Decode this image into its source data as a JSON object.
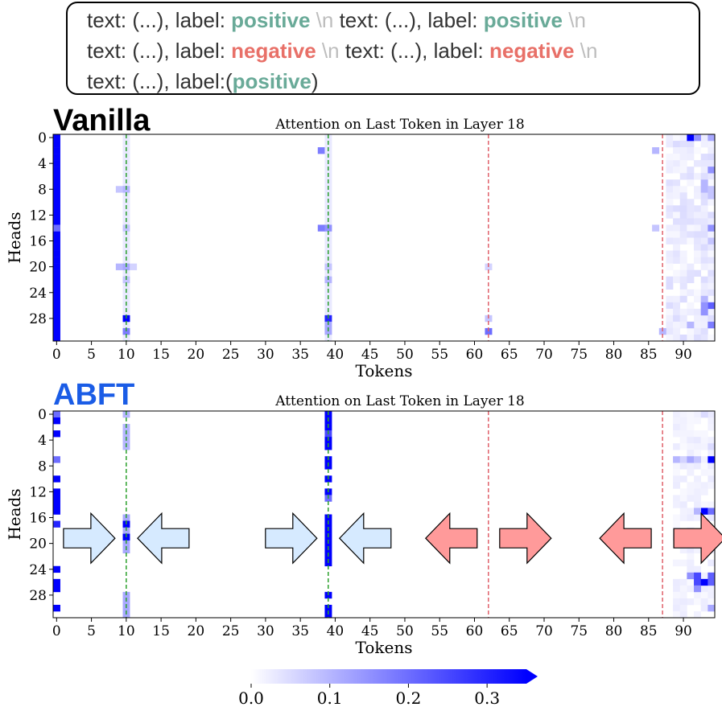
{
  "prompt": {
    "lines": [
      [
        {
          "t": "text: (...), label: ",
          "c": ""
        },
        {
          "t": "positive",
          "c": "pos"
        },
        {
          "t": " \\n",
          "c": "nl"
        },
        {
          "t": "  text: (...), label: ",
          "c": ""
        },
        {
          "t": "positive",
          "c": "pos"
        },
        {
          "t": " \\n",
          "c": "nl"
        }
      ],
      [
        {
          "t": "text: (...), label: ",
          "c": ""
        },
        {
          "t": "negative",
          "c": "neg"
        },
        {
          "t": " \\n",
          "c": "nl"
        },
        {
          "t": " text: (...), label: ",
          "c": ""
        },
        {
          "t": "negative",
          "c": "neg"
        },
        {
          "t": " \\n",
          "c": "nl"
        }
      ],
      [
        {
          "t": "text: (...), label:(",
          "c": ""
        },
        {
          "t": "positive",
          "c": "pos"
        },
        {
          "t": ")",
          "c": ""
        }
      ]
    ]
  },
  "panels": {
    "vanilla": {
      "label": "Vanilla",
      "label_color": "#000000"
    },
    "abft": {
      "label": "ABFT",
      "label_color": "#1a5ce6"
    }
  },
  "colors": {
    "positive": "#69aa98",
    "negative": "#e87068",
    "heat_max": "#0000ff",
    "arrow_blue_fill": "#d6eaff",
    "arrow_red_fill": "#ff9a9a",
    "line_green": "#2ca02c",
    "line_red": "#e0606a"
  },
  "chart_data": [
    {
      "type": "heatmap",
      "id": "vanilla",
      "title": "Attention on Last Token in Layer 18",
      "xlabel": "Tokens",
      "ylabel": "Heads",
      "n_tokens": 95,
      "n_heads": 32,
      "xticks": [
        0,
        5,
        10,
        15,
        20,
        25,
        30,
        35,
        40,
        45,
        50,
        55,
        60,
        65,
        70,
        75,
        80,
        85,
        90
      ],
      "yticks": [
        0,
        4,
        8,
        12,
        16,
        20,
        24,
        28
      ],
      "vlines": [
        {
          "x": 10,
          "color": "green"
        },
        {
          "x": 39,
          "color": "green"
        },
        {
          "x": 62,
          "color": "red"
        },
        {
          "x": 87,
          "color": "red"
        }
      ],
      "cells": [
        {
          "x": 0,
          "y0": 0,
          "y1": 31,
          "v": 0.36
        },
        {
          "x": 0,
          "y0": 14,
          "y1": 14,
          "v": 0.2
        },
        {
          "x": 10,
          "y0": 0,
          "y1": 31,
          "v": 0.03
        },
        {
          "x": 9,
          "y0": 8,
          "y1": 8,
          "v": 0.08
        },
        {
          "x": 10,
          "y0": 8,
          "y1": 8,
          "v": 0.1
        },
        {
          "x": 10,
          "y0": 14,
          "y1": 14,
          "v": 0.08
        },
        {
          "x": 9,
          "y0": 20,
          "y1": 20,
          "v": 0.1
        },
        {
          "x": 10,
          "y0": 20,
          "y1": 20,
          "v": 0.12
        },
        {
          "x": 11,
          "y0": 20,
          "y1": 20,
          "v": 0.06
        },
        {
          "x": 10,
          "y0": 22,
          "y1": 22,
          "v": 0.08
        },
        {
          "x": 10,
          "y0": 28,
          "y1": 28,
          "v": 0.35
        },
        {
          "x": 10,
          "y0": 30,
          "y1": 30,
          "v": 0.18
        },
        {
          "x": 38,
          "y0": 2,
          "y1": 2,
          "v": 0.18
        },
        {
          "x": 39,
          "y0": 0,
          "y1": 31,
          "v": 0.03
        },
        {
          "x": 38,
          "y0": 14,
          "y1": 14,
          "v": 0.18
        },
        {
          "x": 39,
          "y0": 14,
          "y1": 14,
          "v": 0.15
        },
        {
          "x": 39,
          "y0": 20,
          "y1": 20,
          "v": 0.08
        },
        {
          "x": 39,
          "y0": 22,
          "y1": 22,
          "v": 0.1
        },
        {
          "x": 39,
          "y0": 28,
          "y1": 28,
          "v": 0.3
        },
        {
          "x": 39,
          "y0": 29,
          "y1": 30,
          "v": 0.12
        },
        {
          "x": 62,
          "y0": 20,
          "y1": 20,
          "v": 0.06
        },
        {
          "x": 62,
          "y0": 28,
          "y1": 28,
          "v": 0.08
        },
        {
          "x": 62,
          "y0": 30,
          "y1": 30,
          "v": 0.2
        },
        {
          "x": 86,
          "y0": 2,
          "y1": 2,
          "v": 0.1
        },
        {
          "x": 86,
          "y0": 14,
          "y1": 14,
          "v": 0.08
        },
        {
          "x": 87,
          "y0": 30,
          "y1": 30,
          "v": 0.1
        },
        {
          "x": 91,
          "y0": 0,
          "y1": 0,
          "v": 0.38
        },
        {
          "x": 92,
          "y0": 0,
          "y1": 0,
          "v": 0.15
        },
        {
          "x": 94,
          "y0": 0,
          "y1": 0,
          "v": 0.12
        },
        {
          "x": 94,
          "y0": 5,
          "y1": 5,
          "v": 0.15
        },
        {
          "x": 93,
          "y0": 7,
          "y1": 8,
          "v": 0.1
        },
        {
          "x": 94,
          "y0": 8,
          "y1": 9,
          "v": 0.08
        },
        {
          "x": 94,
          "y0": 14,
          "y1": 14,
          "v": 0.15
        },
        {
          "x": 94,
          "y0": 16,
          "y1": 16,
          "v": 0.08
        },
        {
          "x": 93,
          "y0": 25,
          "y1": 25,
          "v": 0.1
        },
        {
          "x": 94,
          "y0": 26,
          "y1": 26,
          "v": 0.22
        },
        {
          "x": 93,
          "y0": 26,
          "y1": 27,
          "v": 0.15
        },
        {
          "x": 94,
          "y0": 29,
          "y1": 29,
          "v": 0.18
        },
        {
          "x": 91,
          "y0": 29,
          "y1": 29,
          "v": 0.1
        }
      ],
      "region_noise": {
        "x_from": 88,
        "x_to": 94,
        "v": 0.05
      }
    },
    {
      "type": "heatmap",
      "id": "abft",
      "title": "Attention on Last Token in Layer 18",
      "xlabel": "Tokens",
      "ylabel": "Heads",
      "n_tokens": 95,
      "n_heads": 32,
      "xticks": [
        0,
        5,
        10,
        15,
        20,
        25,
        30,
        35,
        40,
        45,
        50,
        55,
        60,
        65,
        70,
        75,
        80,
        85,
        90
      ],
      "yticks": [
        0,
        4,
        8,
        12,
        16,
        20,
        24,
        28
      ],
      "vlines": [
        {
          "x": 10,
          "color": "green"
        },
        {
          "x": 39,
          "color": "green"
        },
        {
          "x": 62,
          "color": "red"
        },
        {
          "x": 87,
          "color": "red"
        }
      ],
      "cells": [
        {
          "x": 0,
          "y0": 0,
          "y1": 0,
          "v": 0.2
        },
        {
          "x": 0,
          "y0": 1,
          "y1": 1,
          "v": 0.35
        },
        {
          "x": 0,
          "y0": 3,
          "y1": 3,
          "v": 0.36
        },
        {
          "x": 0,
          "y0": 7,
          "y1": 7,
          "v": 0.2
        },
        {
          "x": 0,
          "y0": 10,
          "y1": 10,
          "v": 0.36
        },
        {
          "x": 0,
          "y0": 12,
          "y1": 15,
          "v": 0.36
        },
        {
          "x": 0,
          "y0": 17,
          "y1": 17,
          "v": 0.3
        },
        {
          "x": 0,
          "y0": 24,
          "y1": 24,
          "v": 0.36
        },
        {
          "x": 0,
          "y0": 26,
          "y1": 27,
          "v": 0.36
        },
        {
          "x": 0,
          "y0": 30,
          "y1": 30,
          "v": 0.36
        },
        {
          "x": 10,
          "y0": 0,
          "y1": 0,
          "v": 0.1
        },
        {
          "x": 10,
          "y0": 2,
          "y1": 5,
          "v": 0.1
        },
        {
          "x": 10,
          "y0": 16,
          "y1": 21,
          "v": 0.12
        },
        {
          "x": 10,
          "y0": 17,
          "y1": 17,
          "v": 0.35
        },
        {
          "x": 10,
          "y0": 19,
          "y1": 19,
          "v": 0.36
        },
        {
          "x": 10,
          "y0": 28,
          "y1": 31,
          "v": 0.12
        },
        {
          "x": 39,
          "y0": 0,
          "y1": 2,
          "v": 0.38
        },
        {
          "x": 39,
          "y0": 3,
          "y1": 3,
          "v": 0.25
        },
        {
          "x": 39,
          "y0": 4,
          "y1": 5,
          "v": 0.38
        },
        {
          "x": 39,
          "y0": 7,
          "y1": 8,
          "v": 0.38
        },
        {
          "x": 39,
          "y0": 10,
          "y1": 10,
          "v": 0.38
        },
        {
          "x": 39,
          "y0": 12,
          "y1": 12,
          "v": 0.38
        },
        {
          "x": 39,
          "y0": 13,
          "y1": 13,
          "v": 0.2
        },
        {
          "x": 39,
          "y0": 16,
          "y1": 23,
          "v": 0.38
        },
        {
          "x": 39,
          "y0": 28,
          "y1": 28,
          "v": 0.38
        },
        {
          "x": 39,
          "y0": 30,
          "y1": 31,
          "v": 0.38
        },
        {
          "x": 93,
          "y0": 0,
          "y1": 0,
          "v": 0.05
        },
        {
          "x": 94,
          "y0": 5,
          "y1": 5,
          "v": 0.05
        },
        {
          "x": 89,
          "y0": 7,
          "y1": 7,
          "v": 0.1
        },
        {
          "x": 90,
          "y0": 7,
          "y1": 7,
          "v": 0.06
        },
        {
          "x": 91,
          "y0": 7,
          "y1": 7,
          "v": 0.12
        },
        {
          "x": 92,
          "y0": 7,
          "y1": 7,
          "v": 0.08
        },
        {
          "x": 94,
          "y0": 7,
          "y1": 7,
          "v": 0.38
        },
        {
          "x": 93,
          "y0": 15,
          "y1": 15,
          "v": 0.35
        },
        {
          "x": 94,
          "y0": 15,
          "y1": 15,
          "v": 0.2
        },
        {
          "x": 92,
          "y0": 15,
          "y1": 15,
          "v": 0.1
        },
        {
          "x": 91,
          "y0": 25,
          "y1": 25,
          "v": 0.15
        },
        {
          "x": 92,
          "y0": 25,
          "y1": 26,
          "v": 0.25
        },
        {
          "x": 93,
          "y0": 26,
          "y1": 26,
          "v": 0.38
        },
        {
          "x": 94,
          "y0": 25,
          "y1": 26,
          "v": 0.22
        },
        {
          "x": 92,
          "y0": 27,
          "y1": 27,
          "v": 0.15
        },
        {
          "x": 94,
          "y0": 30,
          "y1": 30,
          "v": 0.12
        }
      ],
      "region_noise": {
        "x_from": 89,
        "x_to": 94,
        "v": 0.03
      }
    }
  ],
  "colorbar": {
    "vmin": 0.0,
    "vmax": 0.35,
    "ticks": [
      "0.0",
      "0.1",
      "0.2",
      "0.3"
    ],
    "tick_values": [
      0.0,
      0.1,
      0.2,
      0.3
    ],
    "extend": "max"
  },
  "arrows": [
    {
      "dir": "right",
      "color": "blue",
      "near_token": 10
    },
    {
      "dir": "left",
      "color": "blue",
      "near_token": 10
    },
    {
      "dir": "right",
      "color": "blue",
      "near_token": 39
    },
    {
      "dir": "left",
      "color": "blue",
      "near_token": 39
    },
    {
      "dir": "left",
      "color": "red",
      "near_token": 62
    },
    {
      "dir": "right",
      "color": "red",
      "near_token": 62
    },
    {
      "dir": "left",
      "color": "red",
      "near_token": 87
    },
    {
      "dir": "right",
      "color": "red",
      "near_token": 87
    }
  ]
}
